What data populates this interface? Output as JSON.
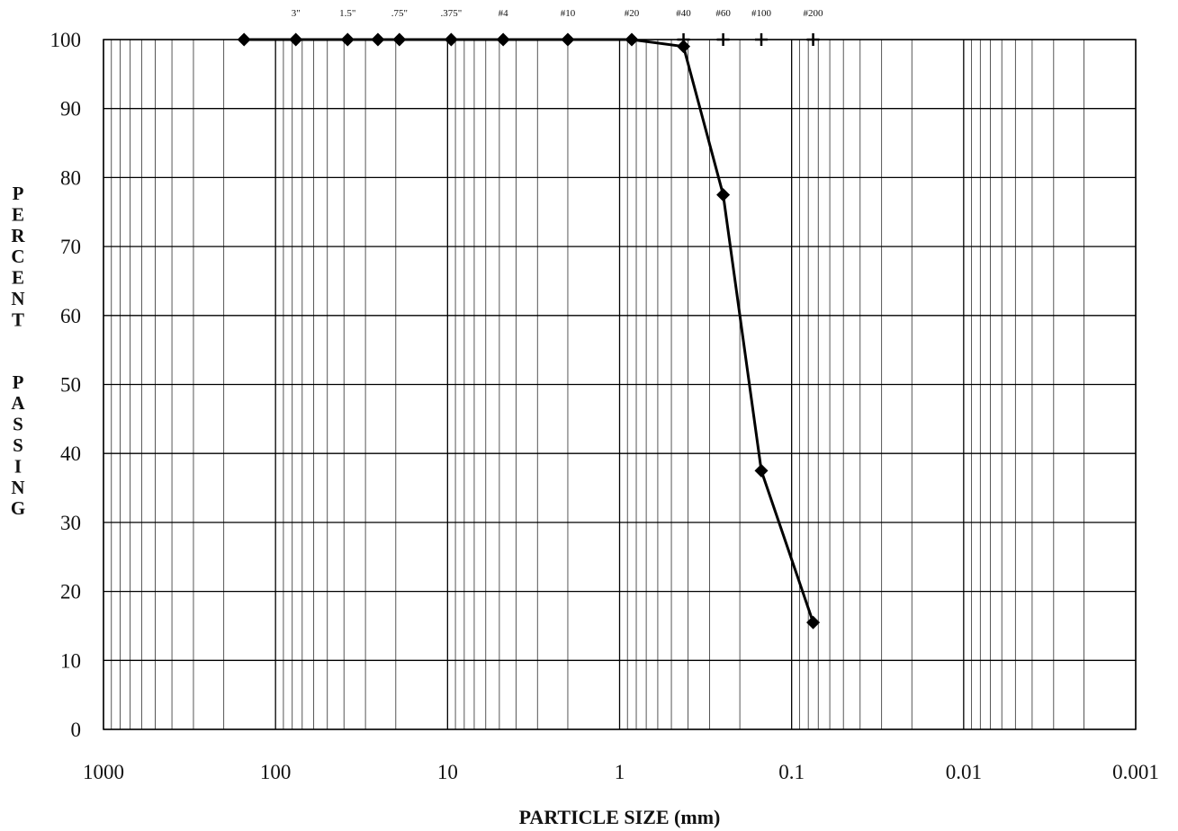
{
  "chart_data": {
    "type": "scatter",
    "title": "",
    "xlabel": "PARTICLE SIZE (mm)",
    "ylabel": "PERCENT PASSING",
    "x_scale": "log",
    "x_reversed": true,
    "xlim": [
      1000,
      0.001
    ],
    "ylim": [
      0,
      100
    ],
    "grid": true,
    "legend": "none",
    "x_tick_labels": [
      "1000",
      "100",
      "10",
      "1",
      "0.1",
      "0.01",
      "0.001"
    ],
    "x_tick_values": [
      1000,
      100,
      10,
      1,
      0.1,
      0.01,
      0.001
    ],
    "y_tick_labels": [
      "0",
      "10",
      "20",
      "30",
      "40",
      "50",
      "60",
      "70",
      "80",
      "90",
      "100"
    ],
    "y_tick_values": [
      0,
      10,
      20,
      30,
      40,
      50,
      60,
      70,
      80,
      90,
      100
    ],
    "series": [
      {
        "x": [
          152.4,
          76.2,
          38.1,
          25.4,
          19.05,
          9.525,
          4.75,
          2.0,
          0.85,
          0.425,
          0.25,
          0.15,
          0.075
        ],
        "y": [
          100,
          100,
          100,
          100,
          100,
          100,
          100,
          100,
          100,
          99,
          77.5,
          37.5,
          15.5
        ],
        "marker": "diamond",
        "color": "#000000"
      }
    ],
    "sieve_labels": [
      {
        "label": "3\"",
        "x": 76.2
      },
      {
        "label": "1.5\"",
        "x": 38.1
      },
      {
        "label": ".75\"",
        "x": 19.05
      },
      {
        "label": ".375\"",
        "x": 9.525
      },
      {
        "label": "#4",
        "x": 4.75
      },
      {
        "label": "#10",
        "x": 2.0
      },
      {
        "label": "#20",
        "x": 0.85
      },
      {
        "label": "#40",
        "x": 0.425
      },
      {
        "label": "#60",
        "x": 0.25
      },
      {
        "label": "#100",
        "x": 0.15
      },
      {
        "label": "#200",
        "x": 0.075
      }
    ],
    "cross_markers": [
      0.425,
      0.25,
      0.15,
      0.075
    ]
  }
}
